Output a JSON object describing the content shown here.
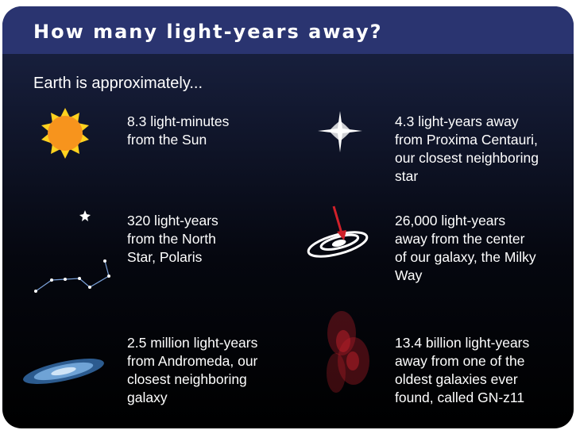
{
  "header": {
    "title": "How many light-years away?"
  },
  "intro": "Earth is approximately...",
  "items": [
    {
      "lines": [
        "8.3 light-minutes",
        "from the Sun"
      ]
    },
    {
      "lines": [
        "4.3 light-years away",
        "from Proxima Centauri,",
        "our closest neighboring",
        "star"
      ]
    },
    {
      "lines": [
        "320 light-years",
        "from the North",
        "Star, Polaris"
      ]
    },
    {
      "lines": [
        "26,000 light-years",
        "away from the center",
        "of our galaxy, the Milky",
        "Way"
      ]
    },
    {
      "lines": [
        "2.5 million light-years",
        "from Andromeda, our",
        "closest neighboring",
        "galaxy"
      ]
    },
    {
      "lines": [
        "13.4 billion light-years",
        "away from one of the",
        "oldest galaxies ever",
        "found, called GN-z11"
      ]
    }
  ]
}
